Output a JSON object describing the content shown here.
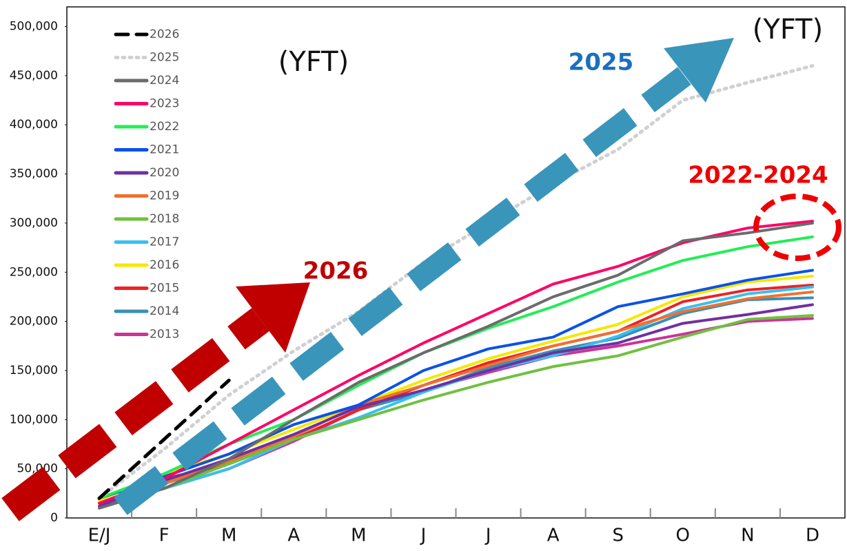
{
  "chart_data": {
    "type": "line",
    "categories": [
      "E/J",
      "F",
      "M",
      "A",
      "M",
      "J",
      "J",
      "A",
      "S",
      "O",
      "N",
      "D"
    ],
    "ylim": [
      0,
      520000
    ],
    "yticks": [
      0,
      {
        "value": 50000,
        "label": "50,000"
      },
      {
        "value": 100000,
        "label": "100,000"
      },
      {
        "value": 150000,
        "label": "150,000"
      },
      {
        "value": 200000,
        "label": "200,000"
      },
      {
        "value": 250000,
        "label": "250,000"
      },
      {
        "value": 300000,
        "label": "300,000"
      },
      {
        "value": 350000,
        "label": "350,000"
      },
      {
        "value": 400000,
        "label": "400,000"
      },
      {
        "value": 450000,
        "label": "450,000"
      },
      {
        "value": 500000,
        "label": "500,000"
      }
    ],
    "legend": "top-left",
    "annotations": [
      "(YFT)",
      "(YFT)",
      "2025",
      "2026",
      "2022-2024"
    ],
    "series": [
      {
        "name": "2026",
        "color": "#000000",
        "dash": "dashed",
        "values": [
          20000,
          80000,
          140000,
          null,
          null,
          null,
          null,
          null,
          null,
          null,
          null,
          null
        ]
      },
      {
        "name": "2025",
        "color": "#d0d0d0",
        "dash": "dotted",
        "values": [
          20000,
          70000,
          125000,
          170000,
          210000,
          260000,
          300000,
          340000,
          375000,
          425000,
          443000,
          460000
        ]
      },
      {
        "name": "2024",
        "color": "#6b6b6b",
        "values": [
          10000,
          30000,
          60000,
          100000,
          138000,
          168000,
          195000,
          225000,
          247000,
          282000,
          290000,
          300000
        ]
      },
      {
        "name": "2023",
        "color": "#ff0066",
        "values": [
          15000,
          40000,
          75000,
          110000,
          145000,
          178000,
          208000,
          238000,
          256000,
          280000,
          295000,
          302000
        ]
      },
      {
        "name": "2022",
        "color": "#22ee55",
        "values": [
          20000,
          45000,
          75000,
          100000,
          135000,
          168000,
          193000,
          215000,
          240000,
          262000,
          276000,
          286000
        ]
      },
      {
        "name": "2021",
        "color": "#0a52e8",
        "values": [
          20000,
          42000,
          65000,
          95000,
          115000,
          150000,
          172000,
          184000,
          215000,
          228000,
          242000,
          252000
        ]
      },
      {
        "name": "2020",
        "color": "#7030a0",
        "values": [
          12000,
          38000,
          60000,
          85000,
          113000,
          130000,
          150000,
          168000,
          178000,
          198000,
          207000,
          217000
        ]
      },
      {
        "name": "2019",
        "color": "#f07030",
        "values": [
          15000,
          35000,
          58000,
          83000,
          115000,
          135000,
          155000,
          175000,
          190000,
          210000,
          223000,
          230000
        ]
      },
      {
        "name": "2018",
        "color": "#70c040",
        "values": [
          10000,
          30000,
          55000,
          80000,
          100000,
          120000,
          138000,
          154000,
          165000,
          184000,
          202000,
          206000
        ]
      },
      {
        "name": "2017",
        "color": "#38c0f0",
        "values": [
          10000,
          30000,
          50000,
          80000,
          102000,
          128000,
          150000,
          165000,
          185000,
          213000,
          228000,
          235000
        ]
      },
      {
        "name": "2016",
        "color": "#f5e800",
        "values": [
          18000,
          45000,
          65000,
          90000,
          115000,
          140000,
          162000,
          180000,
          197000,
          225000,
          240000,
          246000
        ]
      },
      {
        "name": "2015",
        "color": "#ee2222",
        "values": [
          15000,
          40000,
          55000,
          80000,
          110000,
          135000,
          158000,
          175000,
          190000,
          220000,
          232000,
          237000
        ]
      },
      {
        "name": "2014",
        "color": "#3a8fb7",
        "values": [
          10000,
          35000,
          55000,
          80000,
          110000,
          128000,
          153000,
          170000,
          183000,
          208000,
          222000,
          224000
        ]
      },
      {
        "name": "2013",
        "color": "#cc3399",
        "values": [
          12000,
          30000,
          50000,
          78000,
          110000,
          130000,
          148000,
          165000,
          175000,
          187000,
          200000,
          203000
        ]
      }
    ]
  }
}
